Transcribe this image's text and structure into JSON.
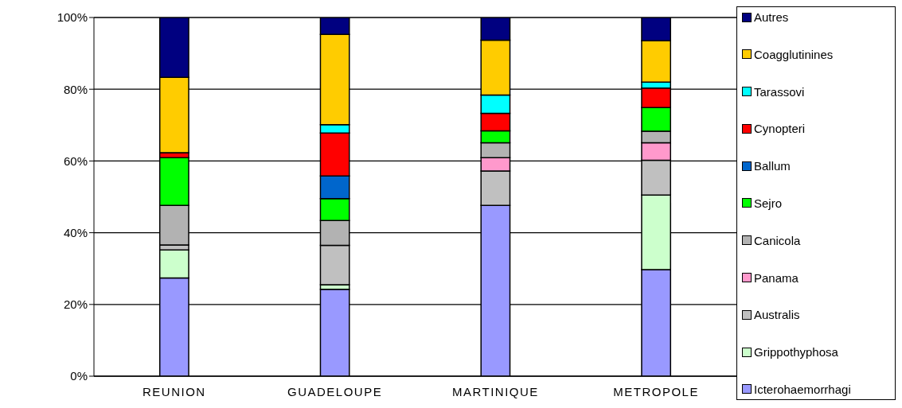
{
  "chart_data": {
    "type": "bar",
    "stacked": true,
    "categories": [
      "REUNION",
      "GUADELOUPE",
      "MARTINIQUE",
      "METROPOLE"
    ],
    "series": [
      {
        "name": "Icterohaemorrhagi",
        "color": "#9999ff",
        "values": [
          27.4,
          24.2,
          47.6,
          29.7
        ]
      },
      {
        "name": "Grippothyphosa",
        "color": "#ccffcc",
        "values": [
          7.8,
          1.3,
          0,
          20.8
        ]
      },
      {
        "name": "Australis",
        "color": "#c0c0c0",
        "values": [
          1.4,
          11.0,
          9.6,
          9.7
        ]
      },
      {
        "name": "Panama",
        "color": "#ff99cc",
        "values": [
          0,
          0,
          3.7,
          4.9
        ]
      },
      {
        "name": "Canicola",
        "color": "#b2b2b2",
        "values": [
          11.0,
          6.9,
          4.2,
          3.2
        ]
      },
      {
        "name": "Sejro",
        "color": "#00ff00",
        "values": [
          13.3,
          6.1,
          3.3,
          6.6
        ]
      },
      {
        "name": "Ballum",
        "color": "#0066cc",
        "values": [
          0,
          6.3,
          0,
          0
        ]
      },
      {
        "name": "Cynopteri",
        "color": "#ff0000",
        "values": [
          1.4,
          12.0,
          4.9,
          5.4
        ]
      },
      {
        "name": "Tarassovi",
        "color": "#00ffff",
        "values": [
          0,
          2.3,
          5.1,
          1.7
        ]
      },
      {
        "name": "Coagglutinines",
        "color": "#ffcc00",
        "values": [
          21.0,
          25.2,
          15.3,
          11.5
        ]
      },
      {
        "name": "Autres",
        "color": "#000080",
        "values": [
          16.7,
          4.7,
          6.3,
          6.5
        ]
      }
    ],
    "ylim": [
      0,
      100
    ],
    "yticks": [
      {
        "value": 0,
        "label": "0%"
      },
      {
        "value": 20,
        "label": "20%"
      },
      {
        "value": 40,
        "label": "40%"
      },
      {
        "value": 60,
        "label": "60%"
      },
      {
        "value": 80,
        "label": "80%"
      },
      {
        "value": 100,
        "label": "100%"
      }
    ],
    "grid": "y",
    "legend": "right"
  }
}
